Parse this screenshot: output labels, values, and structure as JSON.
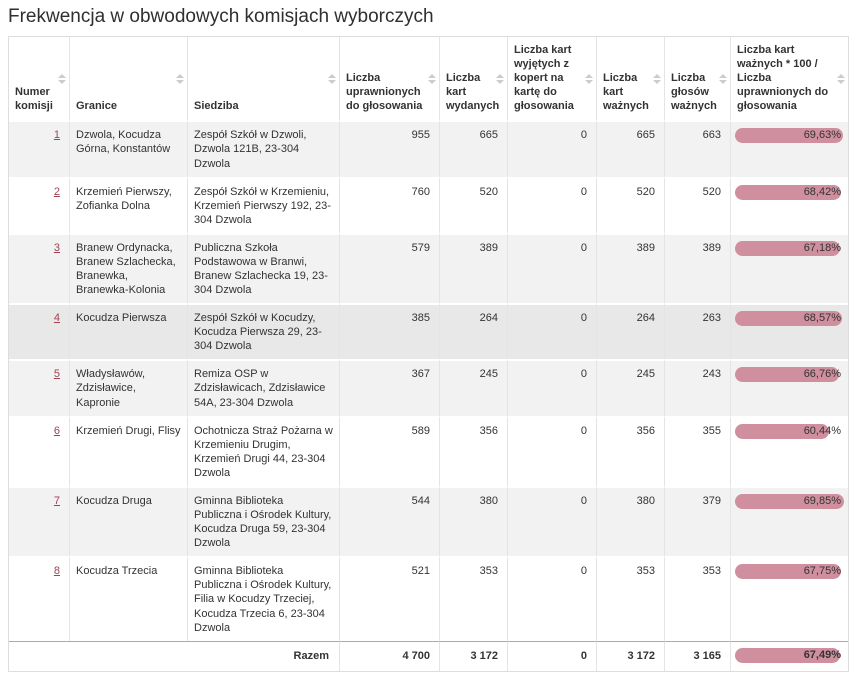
{
  "page": {
    "title": "Frekwencja w obwodowych komisjach wyborczych"
  },
  "colors": {
    "bar": "#d08f9f",
    "link": "#a04252",
    "stripe": "#f2f2f2",
    "hover": "#e8e8e8"
  },
  "table": {
    "columns": [
      {
        "name": "numer-komisji",
        "label": "Numer komisji",
        "sortable": true
      },
      {
        "name": "granice",
        "label": "Granice",
        "sortable": true
      },
      {
        "name": "siedziba",
        "label": "Siedziba",
        "sortable": true
      },
      {
        "name": "liczba-uprawnionych",
        "label": "Liczba uprawnionych do głosowania",
        "sortable": true
      },
      {
        "name": "liczba-kart-wydanych",
        "label": "Liczba kart wydanych",
        "sortable": true
      },
      {
        "name": "liczba-kart-wyjetych",
        "label": "Liczba kart wyjętych z kopert na kartę do głosowania",
        "sortable": true
      },
      {
        "name": "liczba-kart-waznych",
        "label": "Liczba kart ważnych",
        "sortable": true
      },
      {
        "name": "liczba-glosow-waznych",
        "label": "Liczba głosów ważnych",
        "sortable": true
      },
      {
        "name": "frekwencja",
        "label": "Liczba kart ważnych * 100 / Liczba uprawnionych do głosowania",
        "sortable": true
      }
    ],
    "rows": [
      {
        "numer": "1",
        "granice": "Dzwola, Kocudza Górna, Konstantów",
        "siedziba": "Zespół Szkół w Dzwoli, Dzwola 121B, 23-304 Dzwola",
        "uprawnieni": "955",
        "kart_wydanych": "665",
        "kart_wyjetych": "0",
        "kart_waznych": "665",
        "glosow_waznych": "663",
        "frekwencja": "69,63%",
        "frekwencja_pct": 69.63,
        "hovered": false
      },
      {
        "numer": "2",
        "granice": "Krzemień Pierwszy, Zofianka Dolna",
        "siedziba": "Zespół Szkół w Krzemieniu, Krzemień Pierwszy 192, 23-304 Dzwola",
        "uprawnieni": "760",
        "kart_wydanych": "520",
        "kart_wyjetych": "0",
        "kart_waznych": "520",
        "glosow_waznych": "520",
        "frekwencja": "68,42%",
        "frekwencja_pct": 68.42,
        "hovered": false
      },
      {
        "numer": "3",
        "granice": "Branew Ordynacka, Branew Szlachecka, Branewka, Branewka-Kolonia",
        "siedziba": "Publiczna Szkoła Podstawowa w Branwi, Branew Szlachecka 19, 23-304 Dzwola",
        "uprawnieni": "579",
        "kart_wydanych": "389",
        "kart_wyjetych": "0",
        "kart_waznych": "389",
        "glosow_waznych": "389",
        "frekwencja": "67,18%",
        "frekwencja_pct": 67.18,
        "hovered": false
      },
      {
        "numer": "4",
        "granice": "Kocudza Pierwsza",
        "siedziba": "Zespół Szkół w Kocudzy, Kocudza Pierwsza 29, 23-304 Dzwola",
        "uprawnieni": "385",
        "kart_wydanych": "264",
        "kart_wyjetych": "0",
        "kart_waznych": "264",
        "glosow_waznych": "263",
        "frekwencja": "68,57%",
        "frekwencja_pct": 68.57,
        "hovered": true
      },
      {
        "numer": "5",
        "granice": "Władysławów, Zdzisławice, Kapronie",
        "siedziba": "Remiza OSP w Zdzisławicach, Zdzisławice 54A, 23-304 Dzwola",
        "uprawnieni": "367",
        "kart_wydanych": "245",
        "kart_wyjetych": "0",
        "kart_waznych": "245",
        "glosow_waznych": "243",
        "frekwencja": "66,76%",
        "frekwencja_pct": 66.76,
        "hovered": false
      },
      {
        "numer": "6",
        "granice": "Krzemień Drugi, Flisy",
        "siedziba": "Ochotnicza Straż Pożarna w Krzemieniu Drugim, Krzemień Drugi 44, 23-304 Dzwola",
        "uprawnieni": "589",
        "kart_wydanych": "356",
        "kart_wyjetych": "0",
        "kart_waznych": "356",
        "glosow_waznych": "355",
        "frekwencja": "60,44%",
        "frekwencja_pct": 60.44,
        "hovered": false
      },
      {
        "numer": "7",
        "granice": "Kocudza Druga",
        "siedziba": "Gminna Biblioteka Publiczna i Ośrodek Kultury, Kocudza Druga 59, 23-304 Dzwola",
        "uprawnieni": "544",
        "kart_wydanych": "380",
        "kart_wyjetych": "0",
        "kart_waznych": "380",
        "glosow_waznych": "379",
        "frekwencja": "69,85%",
        "frekwencja_pct": 69.85,
        "hovered": false
      },
      {
        "numer": "8",
        "granice": "Kocudza Trzecia",
        "siedziba": "Gminna Biblioteka Publiczna i Ośrodek Kultury, Filia w Kocudzy Trzeciej, Kocudza Trzecia 6, 23-304 Dzwola",
        "uprawnieni": "521",
        "kart_wydanych": "353",
        "kart_wyjetych": "0",
        "kart_waznych": "353",
        "glosow_waznych": "353",
        "frekwencja": "67,75%",
        "frekwencja_pct": 67.75,
        "hovered": false
      }
    ],
    "total_row": {
      "label": "Razem",
      "uprawnieni": "4 700",
      "kart_wydanych": "3 172",
      "kart_wyjetych": "0",
      "kart_waznych": "3 172",
      "glosow_waznych": "3 165",
      "frekwencja": "67,49%",
      "frekwencja_pct": 67.49
    }
  }
}
